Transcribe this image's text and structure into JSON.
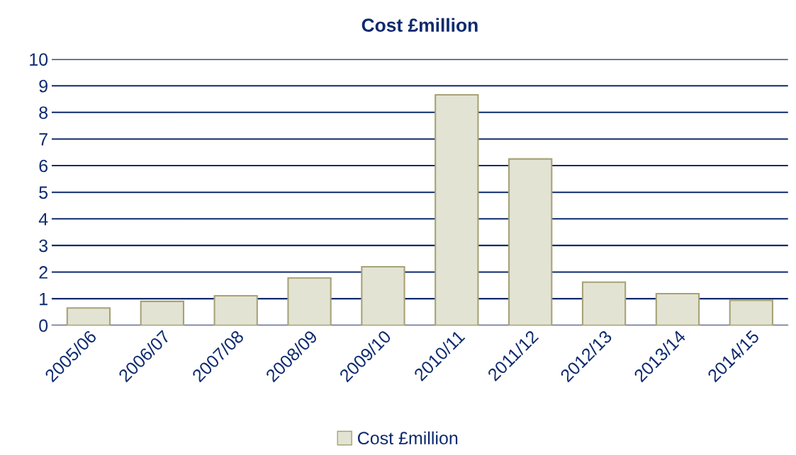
{
  "chart_data": {
    "type": "bar",
    "title": "Cost £million",
    "categories": [
      "2005/06",
      "2006/07",
      "2007/08",
      "2008/09",
      "2009/10",
      "2010/11",
      "2011/12",
      "2012/13",
      "2013/14",
      "2014/15"
    ],
    "series": [
      {
        "name": "Cost £million",
        "color": "#e3e3d3",
        "values": [
          0.65,
          0.9,
          1.11,
          1.78,
          2.2,
          8.66,
          6.25,
          1.62,
          1.19,
          0.94
        ]
      }
    ],
    "ylim": [
      0,
      10
    ],
    "yticks": [
      0,
      1,
      2,
      3,
      4,
      5,
      6,
      7,
      8,
      9,
      10
    ],
    "grid": "y",
    "legend": "bottom"
  }
}
